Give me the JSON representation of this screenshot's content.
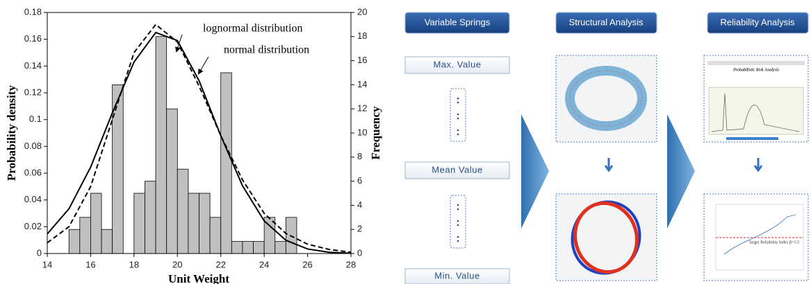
{
  "chart_data": {
    "type": "histogram",
    "xlabel": "Unit Weight",
    "ylabel": "Probability density",
    "y2label": "Frequency",
    "xlim": [
      14,
      28
    ],
    "xticks": [
      14,
      16,
      18,
      20,
      22,
      24,
      26,
      28
    ],
    "ylim": [
      0,
      0.18
    ],
    "yticks": [
      0,
      0.02,
      0.04,
      0.06,
      0.08,
      0.1,
      0.12,
      0.14,
      0.16,
      0.18
    ],
    "y2lim": [
      0,
      20
    ],
    "y2ticks": [
      0,
      2,
      4,
      6,
      8,
      10,
      12,
      14,
      16,
      18,
      20
    ],
    "bins": [
      15,
      15.5,
      16,
      16.5,
      17,
      17.5,
      18,
      18.5,
      19,
      19.5,
      20,
      20.5,
      21,
      21.5,
      22,
      22.5,
      23,
      23.5,
      24,
      24.5,
      25,
      25.5
    ],
    "counts": [
      2,
      3,
      5,
      2,
      14,
      0,
      5,
      6,
      18,
      12,
      7,
      5,
      5,
      3,
      15,
      1,
      1,
      1,
      3,
      1,
      3
    ],
    "bar_color": "#c0c0c0",
    "lines": [
      {
        "name": "lognormal distribution",
        "style": "solid",
        "color": "#000000",
        "x": [
          14,
          15,
          16,
          17,
          18,
          19,
          20,
          21,
          22,
          23,
          24,
          25,
          26,
          27,
          28
        ],
        "values": [
          0.0146,
          0.0334,
          0.0645,
          0.105,
          0.143,
          0.165,
          0.159,
          0.129,
          0.088,
          0.0506,
          0.0244,
          0.0099,
          0.0034,
          0.0009,
          0.0002
        ]
      },
      {
        "name": "normal distribution",
        "style": "dashed",
        "color": "#000000",
        "x": [
          14,
          15,
          16,
          17,
          18,
          19,
          20,
          21,
          22,
          23,
          24,
          25,
          26,
          27,
          28
        ],
        "values": [
          0.008,
          0.02,
          0.05,
          0.1,
          0.15,
          0.171,
          0.158,
          0.125,
          0.088,
          0.055,
          0.03,
          0.015,
          0.007,
          0.003,
          0.001
        ]
      }
    ]
  },
  "diagram": {
    "headers": [
      "Variable Springs",
      "Structural Analysis",
      "Reliability Analysis"
    ],
    "values": [
      "Max. Value",
      "Mean Value",
      "Min. Value"
    ],
    "screens": {
      "risk_title": "Probabilistic Risk Analysis",
      "target_label": "Target Reliability Index β=3.5"
    }
  }
}
